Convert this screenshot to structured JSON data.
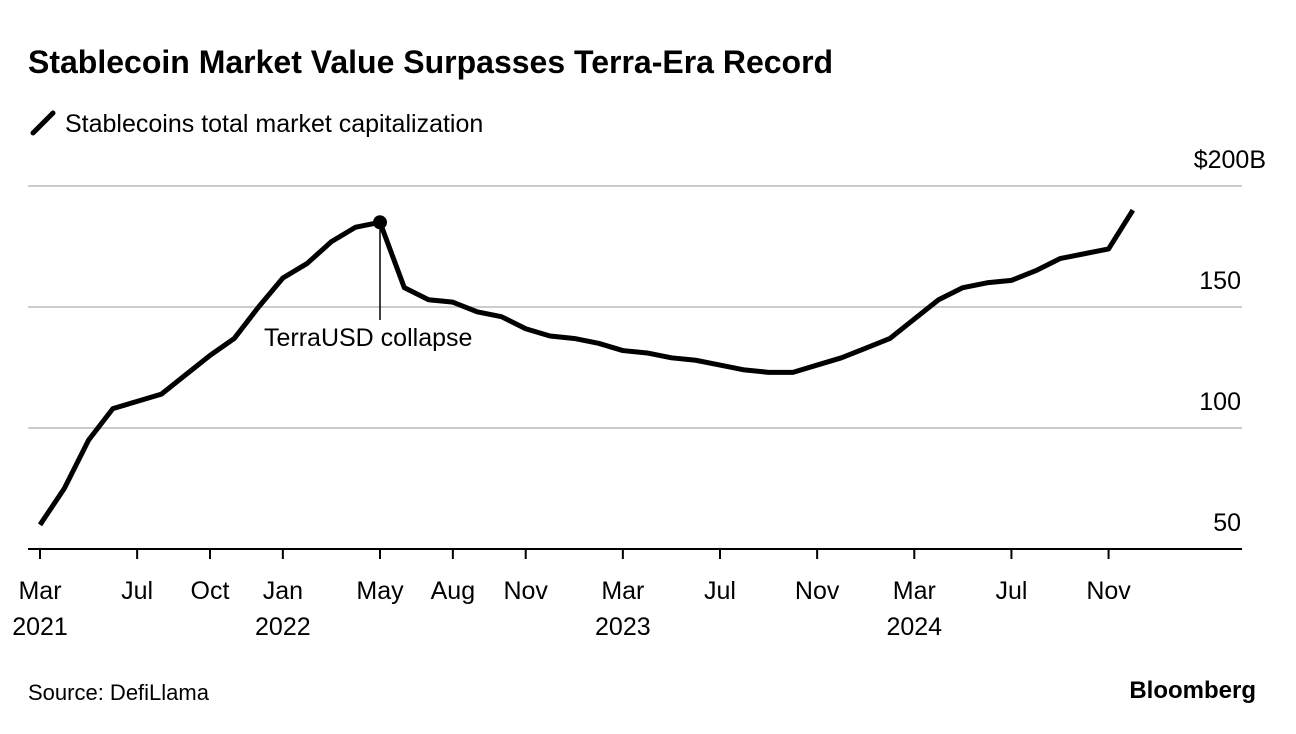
{
  "chart_data": {
    "type": "line",
    "title": "Stablecoin Market Value Surpasses Terra-Era Record",
    "source": "Source: DefiLlama",
    "brand": "Bloomberg",
    "x": [
      "2021-03",
      "2021-04",
      "2021-05",
      "2021-06",
      "2021-07",
      "2021-08",
      "2021-09",
      "2021-10",
      "2021-11",
      "2021-12",
      "2022-01",
      "2022-02",
      "2022-03",
      "2022-04",
      "2022-05",
      "2022-06",
      "2022-07",
      "2022-08",
      "2022-09",
      "2022-10",
      "2022-11",
      "2022-12",
      "2023-01",
      "2023-02",
      "2023-03",
      "2023-04",
      "2023-05",
      "2023-06",
      "2023-07",
      "2023-08",
      "2023-09",
      "2023-10",
      "2023-11",
      "2023-12",
      "2024-01",
      "2024-02",
      "2024-03",
      "2024-04",
      "2024-05",
      "2024-06",
      "2024-07",
      "2024-08",
      "2024-09",
      "2024-10",
      "2024-11",
      "2024-12"
    ],
    "series": [
      {
        "name": "Stablecoins total market capitalization",
        "color": "#000000",
        "values": [
          60,
          75,
          95,
          108,
          111,
          114,
          122,
          130,
          137,
          150,
          162,
          168,
          177,
          183,
          185,
          158,
          153,
          152,
          148,
          146,
          141,
          138,
          137,
          135,
          132,
          131,
          129,
          128,
          126,
          124,
          123,
          123,
          126,
          129,
          133,
          137,
          145,
          153,
          158,
          160,
          161,
          165,
          170,
          172,
          174,
          190
        ]
      }
    ],
    "annotation": {
      "text": "TerraUSD collapse",
      "x": "2022-05"
    },
    "xlim": [
      "2021-03",
      "2025-04"
    ],
    "xticks": [
      {
        "value": "2021-03",
        "label": "Mar 2021"
      },
      {
        "value": "2021-07",
        "label": "Jul"
      },
      {
        "value": "2021-10",
        "label": "Oct"
      },
      {
        "value": "2022-01",
        "label": "Jan 2022"
      },
      {
        "value": "2022-05",
        "label": "May"
      },
      {
        "value": "2022-08",
        "label": "Aug"
      },
      {
        "value": "2022-11",
        "label": "Nov"
      },
      {
        "value": "2023-03",
        "label": "Mar 2023"
      },
      {
        "value": "2023-07",
        "label": "Jul"
      },
      {
        "value": "2023-11",
        "label": "Nov"
      },
      {
        "value": "2024-03",
        "label": "Mar 2024"
      },
      {
        "value": "2024-07",
        "label": "Jul"
      },
      {
        "value": "2024-11",
        "label": "Nov"
      }
    ],
    "ylim": [
      50,
      200
    ],
    "yticks": [
      50,
      100,
      150,
      {
        "value": 200,
        "label": "$200B"
      }
    ],
    "grid": true
  }
}
